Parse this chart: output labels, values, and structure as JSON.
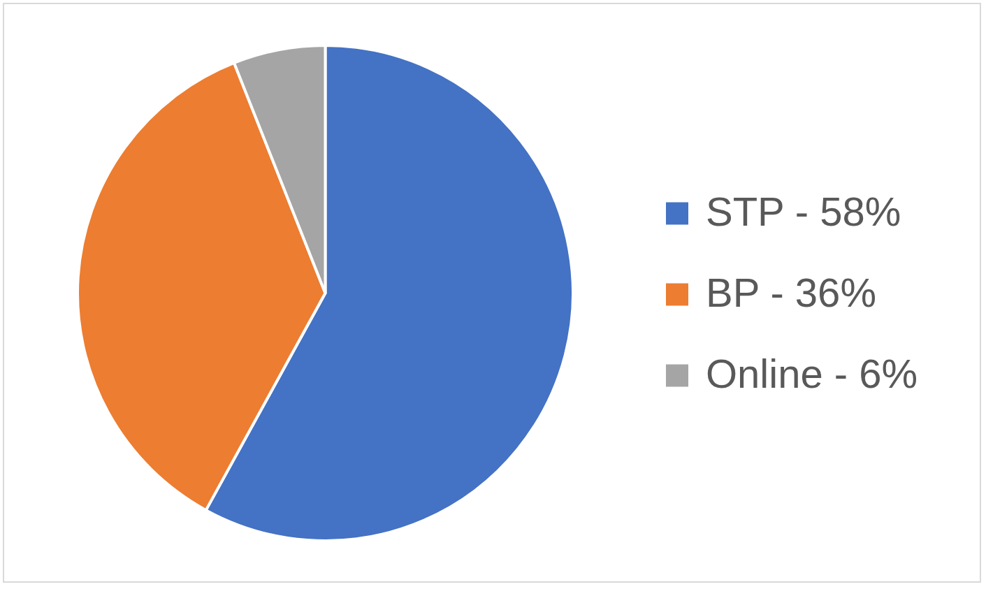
{
  "chart_data": {
    "type": "pie",
    "categories": [
      "STP - 58%",
      "BP - 36%",
      "Online - 6%"
    ],
    "values": [
      58,
      36,
      6
    ],
    "colors": [
      "#4472c4",
      "#ed7d31",
      "#a5a5a5"
    ],
    "legend": "right"
  }
}
